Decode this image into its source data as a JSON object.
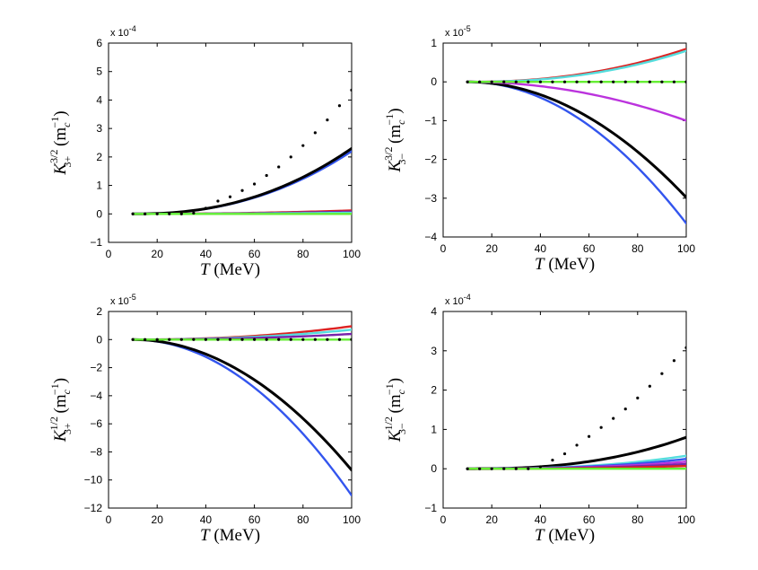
{
  "figure": {
    "background": "#ffffff"
  },
  "chart_data": [
    {
      "type": "line",
      "panel": "top-left",
      "xlabel": "T (MeV)",
      "ylabel": "K_{3+}^{3/2} (m_c^{-1})",
      "ylabel_parts": {
        "base": "K",
        "sup": "3/2",
        "sub": "3+",
        "unit_open": "(m",
        "unit_sub": "c",
        "unit_sup": "−1",
        "unit_close": ")"
      },
      "multiplier": "x 10",
      "multiplier_exp": "-4",
      "xlim": [
        0,
        100
      ],
      "ylim": [
        -1,
        6
      ],
      "xticks": [
        "0",
        "20",
        "40",
        "60",
        "80",
        "100"
      ],
      "yticks": [
        "−1",
        "0",
        "1",
        "2",
        "3",
        "4",
        "5",
        "6"
      ],
      "series": [
        {
          "name": "blue",
          "color": "#3355ee",
          "kind": "power",
          "x": [
            10,
            100
          ],
          "end": 2.2,
          "p": 2.3
        },
        {
          "name": "black",
          "color": "#000000",
          "kind": "power",
          "x": [
            10,
            100
          ],
          "end": 2.3,
          "p": 2.3
        },
        {
          "name": "red",
          "color": "#dd2222",
          "kind": "power",
          "x": [
            10,
            100
          ],
          "end": 0.12,
          "p": 2
        },
        {
          "name": "purple",
          "color": "#7722aa",
          "kind": "power",
          "x": [
            10,
            100
          ],
          "end": 0.08,
          "p": 2
        },
        {
          "name": "cyan",
          "color": "#55dddd",
          "kind": "power",
          "x": [
            10,
            100
          ],
          "end": 0.04,
          "p": 2
        },
        {
          "name": "green",
          "color": "#66ee33",
          "kind": "power",
          "x": [
            10,
            100
          ],
          "end": 0.0,
          "p": 2
        },
        {
          "name": "dots",
          "color": "#000000",
          "kind": "dots",
          "x": [
            10,
            15,
            20,
            25,
            30,
            35,
            40,
            45,
            50,
            55,
            60,
            65,
            70,
            75,
            80,
            85,
            90,
            95,
            100
          ],
          "y": [
            0.0,
            0.0,
            0.0,
            0.0,
            0.0,
            0.03,
            0.2,
            0.45,
            0.6,
            0.82,
            1.05,
            1.35,
            1.65,
            2.0,
            2.4,
            2.85,
            3.3,
            3.8,
            4.35
          ]
        }
      ]
    },
    {
      "type": "line",
      "panel": "top-right",
      "xlabel": "T (MeV)",
      "ylabel": "K_{3−}^{3/2} (m_c^{-1})",
      "ylabel_parts": {
        "base": "K",
        "sup": "3/2",
        "sub": "3−",
        "unit_open": "(m",
        "unit_sub": "c",
        "unit_sup": "−1",
        "unit_close": ")"
      },
      "multiplier": "x 10",
      "multiplier_exp": "-5",
      "xlim": [
        0,
        100
      ],
      "ylim": [
        -4,
        1
      ],
      "xticks": [
        "0",
        "20",
        "40",
        "60",
        "80",
        "100"
      ],
      "yticks": [
        "−4",
        "−3",
        "−2",
        "−1",
        "0",
        "1"
      ],
      "series": [
        {
          "name": "blue",
          "color": "#3355ee",
          "kind": "power",
          "x": [
            10,
            100
          ],
          "end": -3.65,
          "p": 2
        },
        {
          "name": "black",
          "color": "#000000",
          "kind": "power",
          "x": [
            10,
            100
          ],
          "end": -2.98,
          "p": 2
        },
        {
          "name": "magenta",
          "color": "#bb33dd",
          "kind": "power",
          "x": [
            10,
            100
          ],
          "end": -1.0,
          "p": 2
        },
        {
          "name": "red",
          "color": "#dd2222",
          "kind": "power",
          "x": [
            10,
            100
          ],
          "end": 0.85,
          "p": 2.2
        },
        {
          "name": "cyan",
          "color": "#55dddd",
          "kind": "power",
          "x": [
            10,
            100
          ],
          "end": 0.8,
          "p": 2.3
        },
        {
          "name": "green",
          "color": "#66ee33",
          "kind": "power",
          "x": [
            10,
            100
          ],
          "end": 0.0,
          "p": 2
        },
        {
          "name": "dots",
          "color": "#000000",
          "kind": "dots",
          "x": [
            10,
            15,
            20,
            25,
            30,
            35,
            40,
            45,
            50,
            55,
            60,
            65,
            70,
            75,
            80,
            85,
            90,
            95,
            100
          ],
          "y": [
            0,
            0,
            0,
            0,
            0,
            0,
            0,
            0,
            0,
            0,
            0,
            0,
            0,
            0,
            0,
            0,
            0,
            0,
            0
          ]
        }
      ]
    },
    {
      "type": "line",
      "panel": "bottom-left",
      "xlabel": "T (MeV)",
      "ylabel": "K_{3+}^{1/2} (m_c^{-1})",
      "ylabel_parts": {
        "base": "K",
        "sup": "1/2",
        "sub": "3+",
        "unit_open": "(m",
        "unit_sub": "c",
        "unit_sup": "−1",
        "unit_close": ")"
      },
      "multiplier": "x 10",
      "multiplier_exp": "-5",
      "xlim": [
        0,
        100
      ],
      "ylim": [
        -12,
        2
      ],
      "xticks": [
        "0",
        "20",
        "40",
        "60",
        "80",
        "100"
      ],
      "yticks": [
        "−12",
        "−10",
        "−8",
        "−6",
        "−4",
        "−2",
        "0",
        "2"
      ],
      "series": [
        {
          "name": "blue",
          "color": "#3355ee",
          "kind": "power",
          "x": [
            10,
            100
          ],
          "end": -11.1,
          "p": 2
        },
        {
          "name": "black",
          "color": "#000000",
          "kind": "power",
          "x": [
            10,
            100
          ],
          "end": -9.3,
          "p": 2
        },
        {
          "name": "red",
          "color": "#dd2222",
          "kind": "power",
          "x": [
            10,
            100
          ],
          "end": 0.95,
          "p": 2.2
        },
        {
          "name": "cyan",
          "color": "#55dddd",
          "kind": "power",
          "x": [
            10,
            100
          ],
          "end": 0.7,
          "p": 2.2
        },
        {
          "name": "purple",
          "color": "#7722aa",
          "kind": "power",
          "x": [
            10,
            100
          ],
          "end": 0.4,
          "p": 2.2
        },
        {
          "name": "green",
          "color": "#66ee33",
          "kind": "power",
          "x": [
            10,
            100
          ],
          "end": 0.0,
          "p": 2
        },
        {
          "name": "dots",
          "color": "#000000",
          "kind": "dots",
          "x": [
            10,
            15,
            20,
            25,
            30,
            35,
            40,
            45,
            50,
            55,
            60,
            65,
            70,
            75,
            80,
            85,
            90,
            95,
            100
          ],
          "y": [
            0,
            0,
            0,
            0,
            0,
            0,
            0,
            0,
            0,
            0,
            0,
            0,
            0,
            0,
            0,
            0,
            0,
            0,
            0
          ]
        }
      ]
    },
    {
      "type": "line",
      "panel": "bottom-right",
      "xlabel": "T (MeV)",
      "ylabel": "K_{3−}^{1/2} (m_c^{-1})",
      "ylabel_parts": {
        "base": "K",
        "sup": "1/2",
        "sub": "3−",
        "unit_open": "(m",
        "unit_sub": "c",
        "unit_sup": "−1",
        "unit_close": ")"
      },
      "multiplier": "x 10",
      "multiplier_exp": "-4",
      "xlim": [
        0,
        100
      ],
      "ylim": [
        -1,
        4
      ],
      "xticks": [
        "0",
        "20",
        "40",
        "60",
        "80",
        "100"
      ],
      "yticks": [
        "−1",
        "0",
        "1",
        "2",
        "3",
        "4"
      ],
      "series": [
        {
          "name": "black",
          "color": "#000000",
          "kind": "power",
          "x": [
            10,
            100
          ],
          "end": 0.8,
          "p": 2.5
        },
        {
          "name": "cyan",
          "color": "#55dddd",
          "kind": "power",
          "x": [
            10,
            100
          ],
          "end": 0.33,
          "p": 2.5
        },
        {
          "name": "blue",
          "color": "#3355ee",
          "kind": "power",
          "x": [
            10,
            100
          ],
          "end": 0.25,
          "p": 2.5
        },
        {
          "name": "magenta",
          "color": "#bb33dd",
          "kind": "power",
          "x": [
            10,
            100
          ],
          "end": 0.18,
          "p": 2.5
        },
        {
          "name": "purple",
          "color": "#7722aa",
          "kind": "power",
          "x": [
            10,
            100
          ],
          "end": 0.12,
          "p": 2.5
        },
        {
          "name": "red",
          "color": "#dd2222",
          "kind": "power",
          "x": [
            10,
            100
          ],
          "end": 0.07,
          "p": 2.5
        },
        {
          "name": "green",
          "color": "#66ee33",
          "kind": "power",
          "x": [
            10,
            100
          ],
          "end": 0.0,
          "p": 2
        },
        {
          "name": "dots",
          "color": "#000000",
          "kind": "dots",
          "x": [
            10,
            15,
            20,
            25,
            30,
            35,
            40,
            45,
            50,
            55,
            60,
            65,
            70,
            75,
            80,
            85,
            90,
            95,
            100
          ],
          "y": [
            0.0,
            0.0,
            0.0,
            0.0,
            0.0,
            0.0,
            0.05,
            0.22,
            0.38,
            0.6,
            0.82,
            1.05,
            1.28,
            1.52,
            1.8,
            2.1,
            2.42,
            2.75,
            3.08
          ]
        }
      ]
    }
  ]
}
